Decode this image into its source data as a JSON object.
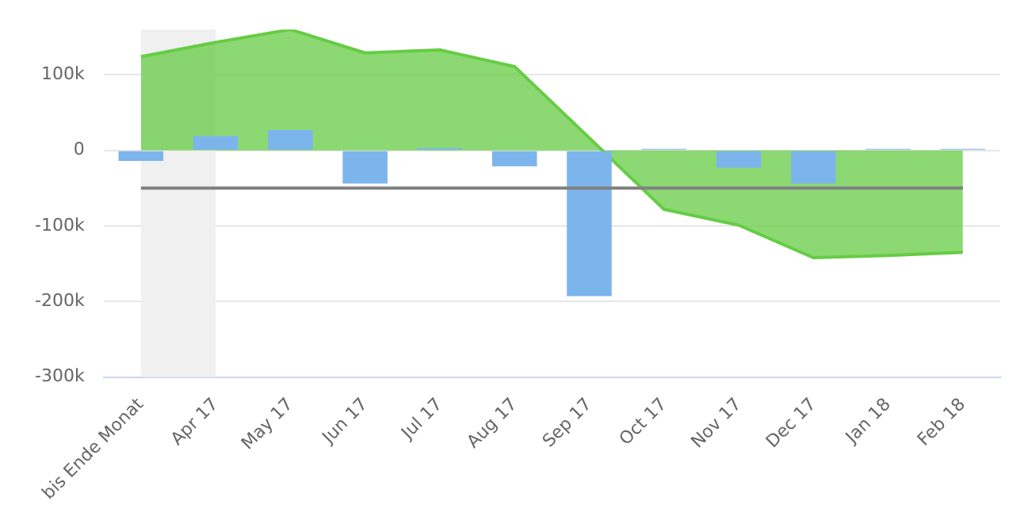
{
  "chart_data": {
    "type": "bar",
    "categories": [
      "bis Ende Monat",
      "Apr 17",
      "May 17",
      "Jun 17",
      "Jul 17",
      "Aug 17",
      "Sep 17",
      "Oct 17",
      "Nov 17",
      "Dec 17",
      "Jan 18",
      "Feb 18"
    ],
    "series": [
      {
        "type": "area",
        "color": "#66cc44",
        "values": [
          124000,
          143000,
          160000,
          129000,
          133000,
          111000,
          null,
          -78000,
          -99000,
          -142000,
          -139000,
          -135000
        ]
      },
      {
        "color": "#7cb5ec",
        "values": [
          -14000,
          19000,
          27000,
          -44000,
          3000,
          -21000,
          -193000,
          2000,
          -23000,
          -44000,
          2000,
          2000
        ]
      }
    ],
    "ylim": [
      -300000,
      160000
    ],
    "yticks": [
      {
        "value": -300000,
        "label": "-300k"
      },
      {
        "value": -200000,
        "label": "-200k"
      },
      {
        "value": -100000,
        "label": "-100k"
      },
      0,
      {
        "value": 100000,
        "label": "100k"
      }
    ],
    "ref_lines": [
      {
        "axis": "y",
        "value": -50000,
        "color": "#808080"
      }
    ],
    "bands": [
      {
        "axis": "x",
        "from": "bis Ende Monat",
        "to": "Apr 17",
        "color": "#f0f0f0"
      }
    ],
    "grid": "y",
    "legend": false
  }
}
